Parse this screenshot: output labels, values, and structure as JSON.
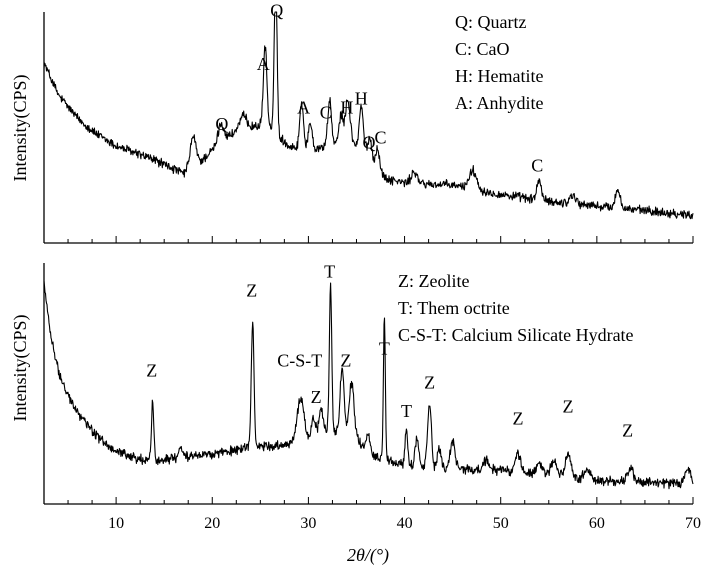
{
  "x_axis": {
    "label": "2θ/(°)",
    "range": [
      2.5,
      70
    ],
    "major_ticks": [
      10,
      20,
      30,
      40,
      50,
      60,
      70
    ],
    "tick_labels": [
      "10",
      "20",
      "30",
      "40",
      "50",
      "60",
      "70"
    ],
    "minor_step": 2.5
  },
  "chart_data": [
    {
      "type": "line",
      "panel": "top",
      "title": "",
      "ylabel": "Intensity(CPS)",
      "xlabel": "",
      "xlim": [
        2.5,
        70
      ],
      "ylim": [
        0,
        100
      ],
      "legend": [
        "Q: Quartz",
        "C: CaO",
        "H: Hematite",
        "A: Anhydite"
      ],
      "series": [
        {
          "name": "XRD pattern (top)",
          "baseline": [
            [
              2.5,
              78
            ],
            [
              4,
              64
            ],
            [
              6,
              54
            ],
            [
              8,
              47
            ],
            [
              10,
              42
            ],
            [
              12,
              39
            ],
            [
              14,
              36
            ],
            [
              16,
              32
            ],
            [
              17,
              30
            ],
            [
              18,
              33
            ],
            [
              19,
              36
            ],
            [
              20,
              40
            ],
            [
              21,
              44
            ],
            [
              22,
              47
            ],
            [
              24,
              50
            ],
            [
              25,
              51
            ],
            [
              26,
              50
            ],
            [
              27,
              46
            ],
            [
              28,
              42
            ],
            [
              30,
              40
            ],
            [
              32,
              42
            ],
            [
              34,
              44
            ],
            [
              36,
              40
            ],
            [
              37,
              33
            ],
            [
              38,
              28
            ],
            [
              40,
              26
            ],
            [
              45,
              25
            ],
            [
              50,
              21
            ],
            [
              55,
              18
            ],
            [
              60,
              16
            ],
            [
              65,
              14
            ],
            [
              70,
              12
            ]
          ],
          "peaks": [
            [
              18,
              13,
              0.3
            ],
            [
              20.9,
              8,
              0.3
            ],
            [
              23.2,
              6,
              0.4
            ],
            [
              25.5,
              35,
              0.18
            ],
            [
              26.6,
              72,
              0.14
            ],
            [
              29.3,
              20,
              0.2
            ],
            [
              30.2,
              12,
              0.2
            ],
            [
              32.2,
              19,
              0.2
            ],
            [
              33.4,
              12,
              0.2
            ],
            [
              34.1,
              18,
              0.25
            ],
            [
              35.5,
              18,
              0.2
            ],
            [
              36.4,
              8,
              0.2
            ],
            [
              37.2,
              9,
              0.2
            ],
            [
              41,
              5,
              0.3
            ],
            [
              47.1,
              8,
              0.4
            ],
            [
              54,
              9,
              0.22
            ],
            [
              57.5,
              4,
              0.3
            ],
            [
              62.2,
              8,
              0.25
            ]
          ],
          "noise": 1.6,
          "seed": 12345
        }
      ],
      "annotations": [
        {
          "text": "Q",
          "x": 26.7,
          "y": 98
        },
        {
          "text": "A",
          "x": 25.3,
          "y": 75
        },
        {
          "text": "Q",
          "x": 21.0,
          "y": 49
        },
        {
          "text": "A",
          "x": 29.5,
          "y": 56
        },
        {
          "text": "C",
          "x": 31.8,
          "y": 54
        },
        {
          "text": "H",
          "x": 34.0,
          "y": 56
        },
        {
          "text": "H",
          "x": 35.5,
          "y": 60
        },
        {
          "text": "Q",
          "x": 36.3,
          "y": 41
        },
        {
          "text": "C",
          "x": 37.5,
          "y": 43
        },
        {
          "text": "C",
          "x": 53.8,
          "y": 31
        }
      ]
    },
    {
      "type": "line",
      "panel": "bottom",
      "title": "",
      "ylabel": "Intensity(CPS)",
      "xlabel": "2θ/(°)",
      "xlim": [
        2.5,
        70
      ],
      "ylim": [
        0,
        100
      ],
      "legend": [
        "Z: Zeolite",
        "T: Them octrite",
        "C-S-T: Calcium Silicate Hydrate"
      ],
      "series": [
        {
          "name": "XRD pattern (bottom)",
          "baseline": [
            [
              2.5,
              92
            ],
            [
              3.2,
              70
            ],
            [
              4,
              55
            ],
            [
              5,
              45
            ],
            [
              6,
              38
            ],
            [
              8,
              28
            ],
            [
              10,
              22
            ],
            [
              12,
              19
            ],
            [
              14,
              18
            ],
            [
              16,
              19
            ],
            [
              18,
              20
            ],
            [
              20,
              21
            ],
            [
              22,
              22
            ],
            [
              24,
              24
            ],
            [
              26,
              24
            ],
            [
              28,
              25
            ],
            [
              29,
              27
            ],
            [
              30,
              27
            ],
            [
              31,
              29
            ],
            [
              32,
              31
            ],
            [
              33,
              30
            ],
            [
              34,
              30
            ],
            [
              35,
              27
            ],
            [
              36,
              22
            ],
            [
              38,
              18
            ],
            [
              40,
              16
            ],
            [
              45,
              14
            ],
            [
              50,
              14
            ],
            [
              55,
              12
            ],
            [
              60,
              10
            ],
            [
              65,
              9
            ],
            [
              70,
              8
            ]
          ],
          "peaks": [
            [
              13.8,
              25,
              0.12
            ],
            [
              16.7,
              5,
              0.2
            ],
            [
              24.2,
              52,
              0.14
            ],
            [
              29.2,
              17,
              0.35
            ],
            [
              30.5,
              8,
              0.2
            ],
            [
              31.3,
              10,
              0.2
            ],
            [
              32.3,
              60,
              0.12
            ],
            [
              33.5,
              26,
              0.2
            ],
            [
              34.5,
              22,
              0.25
            ],
            [
              36.2,
              8,
              0.2
            ],
            [
              37.9,
              60,
              0.1
            ],
            [
              40.2,
              14,
              0.15
            ],
            [
              41.3,
              12,
              0.2
            ],
            [
              42.6,
              26,
              0.2
            ],
            [
              43.6,
              8,
              0.2
            ],
            [
              45,
              12,
              0.25
            ],
            [
              48.5,
              4,
              0.3
            ],
            [
              51.8,
              7,
              0.3
            ],
            [
              54,
              5,
              0.3
            ],
            [
              55.5,
              6,
              0.3
            ],
            [
              57,
              9,
              0.3
            ],
            [
              59,
              4,
              0.3
            ],
            [
              63.5,
              5,
              0.3
            ],
            [
              69.5,
              6,
              0.3
            ]
          ],
          "noise": 1.6,
          "seed": 6789
        }
      ],
      "annotations": [
        {
          "text": "Z",
          "x": 13.7,
          "y": 53
        },
        {
          "text": "Z",
          "x": 24.1,
          "y": 86
        },
        {
          "text": "C-S-T",
          "x": 29.1,
          "y": 57
        },
        {
          "text": "Z",
          "x": 30.8,
          "y": 42
        },
        {
          "text": "T",
          "x": 32.2,
          "y": 94
        },
        {
          "text": "Z",
          "x": 33.9,
          "y": 57
        },
        {
          "text": "T",
          "x": 37.9,
          "y": 62
        },
        {
          "text": "T",
          "x": 40.2,
          "y": 36
        },
        {
          "text": "Z",
          "x": 42.6,
          "y": 48
        },
        {
          "text": "Z",
          "x": 51.8,
          "y": 33
        },
        {
          "text": "Z",
          "x": 57.0,
          "y": 38
        },
        {
          "text": "Z",
          "x": 63.2,
          "y": 28
        }
      ]
    }
  ]
}
